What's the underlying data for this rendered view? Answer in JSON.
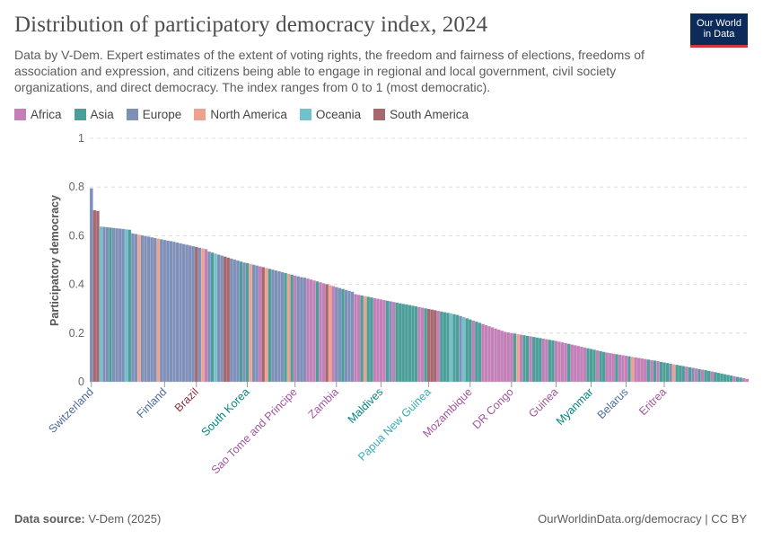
{
  "header": {
    "title": "Distribution of participatory democracy index, 2024",
    "subtitle": "Data by V-Dem. Expert estimates of the extent of voting rights, the freedom and fairness of elections, freedoms of association and expression, and citizens being able to engage in regional and local government, civil society organizations, and direct democracy. The index ranges from 0 to 1 (most democratic).",
    "logo_line1": "Our World",
    "logo_line2": "in Data"
  },
  "legend": [
    {
      "label": "Africa",
      "color": "#c27fb8"
    },
    {
      "label": "Asia",
      "color": "#4c9f99"
    },
    {
      "label": "Europe",
      "color": "#7f90b8"
    },
    {
      "label": "North America",
      "color": "#eda28f"
    },
    {
      "label": "Oceania",
      "color": "#73c1cc"
    },
    {
      "label": "South America",
      "color": "#a5686e"
    }
  ],
  "footer": {
    "source_label": "Data source:",
    "source_value": "V-Dem (2025)",
    "url": "OurWorldinData.org/democracy | CC BY"
  },
  "chart_data": {
    "type": "bar",
    "title": "Distribution of participatory democracy index, 2024",
    "ylabel": "Participatory democracy",
    "xlabel": "",
    "ylim": [
      0,
      1
    ],
    "yticks": [
      0,
      0.2,
      0.4,
      0.6,
      0.8,
      1
    ],
    "grid": true,
    "legend_position": "top-left",
    "region_colors": {
      "Africa": "#c27fb8",
      "Asia": "#4c9f99",
      "Europe": "#7f90b8",
      "North America": "#eda28f",
      "Oceania": "#73c1cc",
      "South America": "#a5686e"
    },
    "segments": [
      {
        "v0": 0.795,
        "v1": 0.795,
        "n": 1,
        "r": [
          "Europe"
        ]
      },
      {
        "v0": 0.705,
        "v1": 0.702,
        "n": 2,
        "r": [
          "South America",
          "South America"
        ]
      },
      {
        "v0": 0.638,
        "v1": 0.625,
        "n": 10,
        "r": [
          "Oceania",
          "Europe",
          "Europe",
          "Asia",
          "Europe",
          "Europe",
          "Europe",
          "Europe",
          "Oceania",
          "Asia"
        ]
      },
      {
        "v0": 0.61,
        "v1": 0.58,
        "n": 12,
        "r": [
          "Europe",
          "Europe",
          "North America",
          "Europe",
          "Europe",
          "Europe",
          "Europe",
          "Europe",
          "North America",
          "Europe",
          "Europe",
          "Europe"
        ]
      },
      {
        "v0": 0.578,
        "v1": 0.545,
        "n": 12,
        "r": [
          "Europe",
          "Europe",
          "Europe",
          "Europe",
          "Europe",
          "Europe",
          "Europe",
          "Europe",
          "South America",
          "Europe",
          "North America",
          "Africa"
        ]
      },
      {
        "v0": 0.535,
        "v1": 0.49,
        "n": 12,
        "r": [
          "Europe",
          "Asia",
          "Oceania",
          "Europe",
          "Europe",
          "South America",
          "South America",
          "Europe",
          "Europe",
          "Europe",
          "Asia",
          "Europe"
        ]
      },
      {
        "v0": 0.488,
        "v1": 0.43,
        "n": 18,
        "r": [
          "Asia",
          "North America",
          "Europe",
          "Europe",
          "Africa",
          "South America",
          "North America",
          "Asia",
          "Europe",
          "Europe",
          "Europe",
          "Europe",
          "Asia",
          "North America",
          "Asia",
          "Africa",
          "Europe",
          "Europe"
        ]
      },
      {
        "v0": 0.428,
        "v1": 0.37,
        "n": 16,
        "r": [
          "Europe",
          "Africa",
          "Africa",
          "Africa",
          "Asia",
          "Africa",
          "Africa",
          "South America",
          "North America",
          "Africa",
          "Europe",
          "Europe",
          "Asia",
          "Europe",
          "Europe",
          "Europe"
        ]
      },
      {
        "v0": 0.36,
        "v1": 0.32,
        "n": 16,
        "r": [
          "Africa",
          "Africa",
          "Asia",
          "North America",
          "Asia",
          "Asia",
          "Africa",
          "Africa",
          "Africa",
          "Africa",
          "Asia",
          "Europe",
          "Africa",
          "Asia",
          "Asia",
          "Asia"
        ]
      },
      {
        "v0": 0.318,
        "v1": 0.278,
        "n": 16,
        "r": [
          "Asia",
          "Asia",
          "Asia",
          "Asia",
          "Africa",
          "Africa",
          "Asia",
          "South America",
          "South America",
          "South America",
          "Africa",
          "Asia",
          "Asia",
          "Asia",
          "Oceania",
          "Asia"
        ]
      },
      {
        "v0": 0.275,
        "v1": 0.205,
        "n": 16,
        "r": [
          "Asia",
          "Europe",
          "Oceania",
          "Asia",
          "Asia",
          "Africa",
          "Asia",
          "Asia",
          "Africa",
          "Africa",
          "Africa",
          "Africa",
          "Africa",
          "Africa",
          "Africa",
          "Africa"
        ]
      },
      {
        "v0": 0.203,
        "v1": 0.168,
        "n": 16,
        "r": [
          "Africa",
          "Africa",
          "Asia",
          "North America",
          "Africa",
          "Asia",
          "Asia",
          "Africa",
          "Asia",
          "Asia",
          "Asia",
          "Africa",
          "Africa",
          "Asia",
          "Asia",
          "Africa"
        ]
      },
      {
        "v0": 0.165,
        "v1": 0.12,
        "n": 16,
        "r": [
          "Africa",
          "Africa",
          "Africa",
          "Asia",
          "Africa",
          "Africa",
          "Africa",
          "Africa",
          "Africa",
          "Asia",
          "Asia",
          "Asia",
          "Africa",
          "Asia",
          "Asia",
          "Africa"
        ]
      },
      {
        "v0": 0.118,
        "v1": 0.085,
        "n": 16,
        "r": [
          "Africa",
          "Africa",
          "Asia",
          "Africa",
          "Africa",
          "Africa",
          "Asia",
          "North America",
          "Africa",
          "Africa",
          "Africa",
          "Africa",
          "Asia",
          "Africa",
          "Asia",
          "Africa"
        ]
      },
      {
        "v0": 0.082,
        "v1": 0.05,
        "n": 14,
        "r": [
          "Asia",
          "Asia",
          "Asia",
          "Europe",
          "North America",
          "Asia",
          "Asia",
          "Asia",
          "Africa",
          "Asia",
          "Europe",
          "Africa",
          "Asia",
          "Africa"
        ]
      },
      {
        "v0": 0.048,
        "v1": 0.012,
        "n": 14,
        "r": [
          "Asia",
          "Asia",
          "Africa",
          "Asia",
          "Asia",
          "Asia",
          "Asia",
          "Asia",
          "Asia",
          "Africa",
          "Asia",
          "Asia",
          "Africa",
          "Africa"
        ]
      }
    ],
    "labels": [
      {
        "text": "Switzerland",
        "region": "Europe",
        "index": 0
      },
      {
        "text": "Finland",
        "region": "Europe",
        "index": 23
      },
      {
        "text": "Brazil",
        "region": "South America",
        "index": 33
      },
      {
        "text": "South Korea",
        "region": "Asia",
        "index": 49
      },
      {
        "text": "Sao Tome and Principe",
        "region": "Africa",
        "index": 64
      },
      {
        "text": "Zambia",
        "region": "Africa",
        "index": 77
      },
      {
        "text": "Maldives",
        "region": "Asia",
        "index": 91
      },
      {
        "text": "Papua New Guinea",
        "region": "Oceania",
        "index": 106
      },
      {
        "text": "Mozambique",
        "region": "Africa",
        "index": 119
      },
      {
        "text": "DR Congo",
        "region": "Africa",
        "index": 132
      },
      {
        "text": "Guinea",
        "region": "Africa",
        "index": 146
      },
      {
        "text": "Myanmar",
        "region": "Asia",
        "index": 157
      },
      {
        "text": "Belarus",
        "region": "Europe",
        "index": 168
      },
      {
        "text": "Eritrea",
        "region": "Africa",
        "index": 180
      }
    ]
  }
}
